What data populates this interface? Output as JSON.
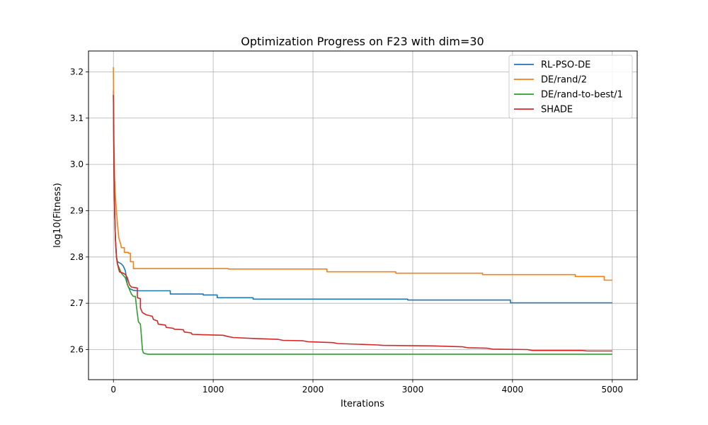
{
  "chart_data": {
    "type": "line",
    "title": "Optimization Progress on F23 with dim=30",
    "xlabel": "Iterations",
    "ylabel": "log10(Fitness)",
    "xlim": [
      -250,
      5250
    ],
    "ylim": [
      2.535,
      3.245
    ],
    "x_ticks": [
      0,
      1000,
      2000,
      3000,
      4000,
      5000
    ],
    "x_tick_labels": [
      "0",
      "1000",
      "2000",
      "3000",
      "4000",
      "5000"
    ],
    "y_ticks": [
      2.6,
      2.7,
      2.8,
      2.9,
      3.0,
      3.1,
      3.2
    ],
    "y_tick_labels": [
      "2.6",
      "2.7",
      "2.8",
      "2.9",
      "3.0",
      "3.1",
      "3.2"
    ],
    "grid": true,
    "legend_position": "top-right",
    "series": [
      {
        "name": "RL-PSO-DE",
        "color": "#1f77b4",
        "points": [
          [
            0,
            3.16
          ],
          [
            5,
            3.0
          ],
          [
            12,
            2.9
          ],
          [
            20,
            2.84
          ],
          [
            30,
            2.8
          ],
          [
            40,
            2.79
          ],
          [
            55,
            2.788
          ],
          [
            80,
            2.785
          ],
          [
            100,
            2.78
          ],
          [
            120,
            2.77
          ],
          [
            140,
            2.74
          ],
          [
            160,
            2.732
          ],
          [
            180,
            2.73
          ],
          [
            200,
            2.728
          ],
          [
            240,
            2.727
          ],
          [
            570,
            2.727
          ],
          [
            570,
            2.72
          ],
          [
            900,
            2.72
          ],
          [
            900,
            2.718
          ],
          [
            1040,
            2.718
          ],
          [
            1040,
            2.712
          ],
          [
            1400,
            2.712
          ],
          [
            1400,
            2.709
          ],
          [
            2950,
            2.709
          ],
          [
            2950,
            2.707
          ],
          [
            3980,
            2.707
          ],
          [
            3980,
            2.701
          ],
          [
            5000,
            2.701
          ]
        ]
      },
      {
        "name": "DE/rand/2",
        "color": "#ff7f0e",
        "points": [
          [
            0,
            3.21
          ],
          [
            5,
            3.05
          ],
          [
            12,
            2.97
          ],
          [
            20,
            2.93
          ],
          [
            30,
            2.9
          ],
          [
            40,
            2.87
          ],
          [
            55,
            2.84
          ],
          [
            70,
            2.83
          ],
          [
            80,
            2.82
          ],
          [
            110,
            2.82
          ],
          [
            110,
            2.81
          ],
          [
            150,
            2.81
          ],
          [
            150,
            2.808
          ],
          [
            170,
            2.808
          ],
          [
            170,
            2.79
          ],
          [
            200,
            2.79
          ],
          [
            200,
            2.775
          ],
          [
            1150,
            2.775
          ],
          [
            1150,
            2.774
          ],
          [
            2140,
            2.774
          ],
          [
            2140,
            2.768
          ],
          [
            2830,
            2.768
          ],
          [
            2830,
            2.765
          ],
          [
            3700,
            2.765
          ],
          [
            3700,
            2.762
          ],
          [
            4630,
            2.762
          ],
          [
            4630,
            2.758
          ],
          [
            4920,
            2.758
          ],
          [
            4920,
            2.75
          ],
          [
            5000,
            2.75
          ]
        ]
      },
      {
        "name": "DE/rand-to-best/1",
        "color": "#2ca02c",
        "points": [
          [
            0,
            3.15
          ],
          [
            5,
            3.0
          ],
          [
            12,
            2.9
          ],
          [
            20,
            2.84
          ],
          [
            30,
            2.8
          ],
          [
            40,
            2.785
          ],
          [
            60,
            2.775
          ],
          [
            80,
            2.765
          ],
          [
            100,
            2.76
          ],
          [
            120,
            2.755
          ],
          [
            140,
            2.74
          ],
          [
            160,
            2.73
          ],
          [
            180,
            2.72
          ],
          [
            200,
            2.715
          ],
          [
            220,
            2.715
          ],
          [
            230,
            2.695
          ],
          [
            250,
            2.66
          ],
          [
            270,
            2.655
          ],
          [
            280,
            2.63
          ],
          [
            290,
            2.6
          ],
          [
            300,
            2.593
          ],
          [
            320,
            2.591
          ],
          [
            350,
            2.59
          ],
          [
            5000,
            2.59
          ]
        ]
      },
      {
        "name": "SHADE",
        "color": "#d62728",
        "points": [
          [
            0,
            3.15
          ],
          [
            5,
            3.02
          ],
          [
            12,
            2.9
          ],
          [
            20,
            2.84
          ],
          [
            30,
            2.8
          ],
          [
            40,
            2.785
          ],
          [
            60,
            2.768
          ],
          [
            100,
            2.765
          ],
          [
            120,
            2.762
          ],
          [
            140,
            2.755
          ],
          [
            160,
            2.74
          ],
          [
            180,
            2.735
          ],
          [
            240,
            2.733
          ],
          [
            240,
            2.712
          ],
          [
            270,
            2.71
          ],
          [
            270,
            2.69
          ],
          [
            290,
            2.68
          ],
          [
            330,
            2.675
          ],
          [
            390,
            2.672
          ],
          [
            400,
            2.665
          ],
          [
            440,
            2.662
          ],
          [
            450,
            2.655
          ],
          [
            520,
            2.653
          ],
          [
            530,
            2.648
          ],
          [
            600,
            2.646
          ],
          [
            610,
            2.644
          ],
          [
            700,
            2.643
          ],
          [
            710,
            2.638
          ],
          [
            780,
            2.636
          ],
          [
            790,
            2.633
          ],
          [
            900,
            2.632
          ],
          [
            1100,
            2.631
          ],
          [
            1150,
            2.628
          ],
          [
            1180,
            2.627
          ],
          [
            1200,
            2.626
          ],
          [
            1400,
            2.624
          ],
          [
            1650,
            2.622
          ],
          [
            1700,
            2.62
          ],
          [
            1900,
            2.619
          ],
          [
            1950,
            2.617
          ],
          [
            2200,
            2.615
          ],
          [
            2250,
            2.613
          ],
          [
            2650,
            2.61
          ],
          [
            2700,
            2.609
          ],
          [
            3200,
            2.608
          ],
          [
            3500,
            2.606
          ],
          [
            3550,
            2.604
          ],
          [
            3750,
            2.603
          ],
          [
            3800,
            2.601
          ],
          [
            4150,
            2.6
          ],
          [
            4200,
            2.598
          ],
          [
            4700,
            2.598
          ],
          [
            4750,
            2.597
          ],
          [
            5000,
            2.597
          ]
        ]
      }
    ]
  }
}
